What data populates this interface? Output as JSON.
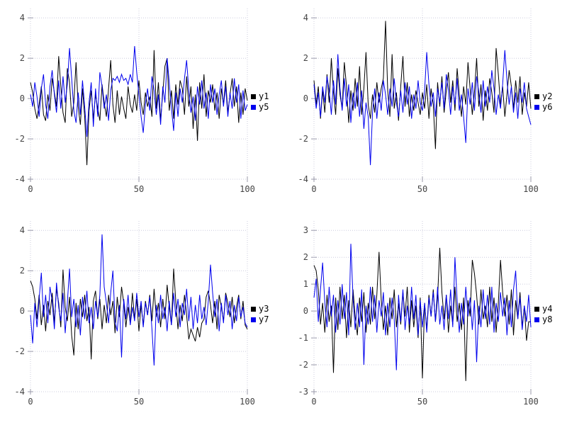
{
  "figure": {
    "background": "#ffffff"
  },
  "colors": {
    "grid": "#ccccdd",
    "tick": "#9999aa",
    "tick_label": "#444444",
    "legend_text": "#000000",
    "series_black": "#000000",
    "series_blue": "#0000ee"
  },
  "chart_data": [
    {
      "type": "line",
      "position": "top-left",
      "title": "",
      "xlabel": "",
      "ylabel": "",
      "xlim": [
        0,
        100
      ],
      "ylim": [
        -4,
        4
      ],
      "x_ticks": [
        0,
        50,
        100
      ],
      "y_ticks": [
        -4,
        -2,
        0,
        2,
        4
      ],
      "grid": true,
      "legend_position": "right",
      "series": [
        {
          "name": "y1",
          "color": "#000000",
          "values": [
            0.8,
            0.3,
            -0.5,
            -1.0,
            -0.3,
            0.6,
            -0.8,
            -1.1,
            0.2,
            -0.6,
            1.0,
            0.3,
            -0.4,
            2.1,
            0.6,
            -0.7,
            -1.2,
            1.5,
            0.8,
            -0.9,
            -0.2,
            1.8,
            -0.4,
            -1.3,
            0.5,
            -0.9,
            -3.3,
            -0.6,
            0.4,
            -1.0,
            0.2,
            -0.5,
            -1.1,
            0.7,
            -0.2,
            -0.9,
            0.5,
            1.9,
            -0.3,
            -1.2,
            0.4,
            -0.8,
            0.1,
            -0.5,
            -1.0,
            0.6,
            -0.3,
            -0.7,
            0.2,
            -0.6,
            0.9,
            -0.2,
            -0.8,
            0.3,
            -0.4,
            0.1,
            -0.9,
            2.4,
            -0.5,
            0.8,
            -1.1,
            0.3,
            1.6,
            2.0,
            -0.6,
            0.4,
            -1.0,
            0.7,
            -0.3,
            0.9,
            0.5,
            -0.8,
            1.1,
            -0.4,
            0.6,
            -1.5,
            0.2,
            -2.1,
            0.8,
            -0.5,
            1.2,
            -0.9,
            0.4,
            -0.2,
            0.7,
            -0.6,
            0.3,
            -1.0,
            0.5,
            -0.3,
            0.9,
            -0.7,
            0.2,
            1.0,
            -0.4,
            0.6,
            -1.2,
            0.3,
            -0.8,
            0.5,
            -0.1
          ]
        },
        {
          "name": "y5",
          "color": "#0000ee",
          "values": [
            0.2,
            -0.4,
            0.8,
            0.1,
            -0.9,
            0.5,
            1.2,
            -0.3,
            -1.0,
            0.6,
            1.4,
            0.2,
            -0.7,
            0.9,
            -0.5,
            1.1,
            -0.2,
            0.7,
            2.5,
            1.0,
            -0.6,
            -1.2,
            0.3,
            -0.8,
            0.9,
            -0.4,
            -1.9,
            -0.2,
            0.8,
            -1.4,
            0.5,
            -0.9,
            1.3,
            0.6,
            -0.5,
            0.2,
            -1.1,
            0.4,
            1.0,
            0.9,
            1.1,
            0.8,
            1.2,
            0.9,
            1.0,
            0.7,
            1.2,
            0.8,
            2.6,
            1.3,
            0.2,
            -0.9,
            -1.7,
            -0.3,
            0.5,
            -0.6,
            1.1,
            0.4,
            -0.8,
            0.2,
            -1.3,
            0.6,
            -0.2,
            2.0,
            0.8,
            -0.5,
            -1.6,
            0.3,
            -0.9,
            0.5,
            -0.2,
            1.0,
            1.9,
            0.4,
            -0.7,
            0.1,
            -1.1,
            0.6,
            -0.3,
            0.9,
            -0.5,
            0.3,
            -1.0,
            0.7,
            -0.2,
            0.5,
            -0.8,
            0.2,
            0.9,
            -0.4,
            0.6,
            -0.9,
            0.3,
            -0.5,
            1.0,
            -0.2,
            0.7,
            -1.0,
            0.4,
            -0.6,
            -0.3
          ]
        }
      ]
    },
    {
      "type": "line",
      "position": "top-right",
      "title": "",
      "xlabel": "",
      "ylabel": "",
      "xlim": [
        0,
        100
      ],
      "ylim": [
        -4,
        4
      ],
      "x_ticks": [
        0,
        50,
        100
      ],
      "y_ticks": [
        -4,
        -2,
        0,
        2,
        4
      ],
      "grid": true,
      "legend_position": "right",
      "series": [
        {
          "name": "y2",
          "color": "#000000",
          "values": [
            0.9,
            -0.3,
            0.6,
            -1.0,
            0.4,
            -0.7,
            1.2,
            -0.2,
            2.0,
            0.3,
            -0.8,
            1.5,
            0.2,
            -0.5,
            1.8,
            0.6,
            -1.2,
            0.4,
            -0.6,
            1.0,
            -0.4,
            1.6,
            -0.8,
            0.5,
            2.3,
            -0.3,
            -1.0,
            0.2,
            -0.7,
            0.8,
            -0.2,
            0.5,
            1.0,
            3.85,
            0.4,
            -0.9,
            2.2,
            -0.5,
            0.3,
            -1.1,
            0.6,
            2.1,
            -0.4,
            0.8,
            -0.9,
            0.2,
            -0.6,
            0.4,
            -0.2,
            -0.8,
            0.3,
            -0.5,
            0.7,
            -1.0,
            0.5,
            -0.3,
            -2.5,
            0.8,
            -0.4,
            1.1,
            -0.7,
            0.4,
            1.3,
            -0.2,
            0.9,
            -0.6,
            1.5,
            0.2,
            -0.9,
            0.6,
            -0.3,
            1.8,
            0.5,
            -0.8,
            0.3,
            2.0,
            -0.4,
            0.7,
            -1.1,
            0.4,
            -0.6,
            1.0,
            0.3,
            -0.7,
            2.5,
            1.2,
            -0.3,
            0.6,
            -0.9,
            0.2,
            1.4,
            0.6,
            -0.5,
            0.9,
            -0.2,
            1.1,
            -0.8,
            0.3,
            -0.4,
            0.8,
            -0.5
          ]
        },
        {
          "name": "y6",
          "color": "#0000ee",
          "values": [
            0.7,
            -0.5,
            0.3,
            -0.9,
            0.6,
            -0.2,
            1.1,
            0.4,
            -0.8,
            0.9,
            -0.3,
            2.2,
            0.5,
            -0.6,
            1.0,
            -0.4,
            0.7,
            -1.2,
            0.3,
            -0.5,
            0.8,
            -0.9,
            0.4,
            -1.5,
            -0.2,
            -0.9,
            -3.3,
            -0.7,
            0.5,
            -1.0,
            0.3,
            -0.6,
            0.9,
            0.2,
            -0.8,
            0.5,
            -0.4,
            1.0,
            -0.2,
            -0.9,
            0.4,
            -0.7,
            0.8,
            -0.3,
            0.6,
            -1.0,
            0.2,
            -0.5,
            0.9,
            -0.2,
            -0.6,
            0.4,
            2.3,
            0.7,
            -0.4,
            0.3,
            -0.9,
            0.5,
            -0.2,
            0.8,
            -0.5,
            1.2,
            0.4,
            -0.8,
            0.6,
            -0.3,
            1.0,
            -0.6,
            0.2,
            -0.9,
            -2.2,
            0.5,
            -0.3,
            0.8,
            -0.6,
            1.1,
            0.3,
            -0.7,
            0.9,
            -0.4,
            0.6,
            -0.2,
            1.4,
            0.5,
            -0.8,
            0.2,
            -0.5,
            0.7,
            2.4,
            0.9,
            -0.3,
            0.6,
            -0.7,
            0.3,
            -1.0,
            0.5,
            -0.2,
            0.8,
            -0.5,
            -0.9,
            -1.3
          ]
        }
      ]
    },
    {
      "type": "line",
      "position": "bottom-left",
      "title": "",
      "xlabel": "",
      "ylabel": "",
      "xlim": [
        0,
        100
      ],
      "ylim": [
        -4,
        4
      ],
      "x_ticks": [
        0,
        50,
        100
      ],
      "y_ticks": [
        -4,
        -2,
        0,
        2,
        4
      ],
      "grid": true,
      "legend_position": "right",
      "series": [
        {
          "name": "y3",
          "color": "#000000",
          "values": [
            1.5,
            1.2,
            0.6,
            -0.4,
            0.8,
            -0.7,
            0.3,
            -1.0,
            0.5,
            -0.2,
            0.9,
            -0.6,
            1.1,
            0.4,
            -0.8,
            2.05,
            0.2,
            -0.5,
            0.7,
            -1.2,
            -2.2,
            0.4,
            -0.9,
            0.6,
            -0.3,
            0.8,
            -0.5,
            0.2,
            -2.4,
            0.5,
            1.0,
            -0.4,
            0.6,
            -0.9,
            0.3,
            -0.6,
            0.8,
            -0.2,
            0.5,
            -1.1,
            0.7,
            -0.3,
            1.2,
            0.4,
            -0.8,
            0.2,
            -0.6,
            0.9,
            -0.4,
            0.6,
            -1.0,
            0.3,
            -0.7,
            0.5,
            -0.2,
            0.8,
            -0.5,
            1.1,
            -0.3,
            0.4,
            -0.8,
            0.6,
            -0.4,
            1.3,
            0.2,
            -0.7,
            2.1,
            0.5,
            -0.9,
            0.3,
            -0.5,
            0.8,
            -0.2,
            -1.4,
            -0.9,
            -1.2,
            -1.5,
            -0.8,
            -1.3,
            -0.6,
            -0.4,
            0.7,
            1.0,
            0.3,
            -0.6,
            0.5,
            -0.9,
            0.8,
            0.2,
            -0.5,
            0.9,
            0.4,
            -0.3,
            0.7,
            -0.6,
            0.2,
            0.8,
            -0.4,
            0.5,
            -0.7,
            -0.9
          ]
        },
        {
          "name": "y7",
          "color": "#0000ee",
          "values": [
            -0.2,
            -1.6,
            0.4,
            -0.8,
            0.6,
            1.9,
            -0.3,
            0.8,
            -0.6,
            1.2,
            0.5,
            -0.9,
            1.4,
            0.2,
            -0.5,
            0.9,
            -1.1,
            0.4,
            2.1,
            -0.3,
            0.6,
            -0.8,
            0.3,
            -1.2,
            0.7,
            -0.4,
            1.0,
            -0.6,
            0.2,
            -0.9,
            0.5,
            -0.3,
            0.8,
            3.8,
            1.2,
            0.4,
            -0.6,
            0.9,
            2.0,
            -0.5,
            -1.0,
            0.3,
            -2.3,
            0.6,
            -0.4,
            0.8,
            -0.7,
            0.2,
            -0.5,
            0.9,
            -0.3,
            0.5,
            -0.8,
            0.4,
            -0.2,
            0.7,
            -0.9,
            -2.7,
            0.3,
            -0.6,
            0.8,
            -0.4,
            0.2,
            -1.0,
            0.5,
            -0.7,
            0.9,
            -0.3,
            0.6,
            -0.8,
            0.4,
            -0.2,
            1.1,
            -0.5,
            0.7,
            -0.9,
            0.3,
            -0.6,
            0.8,
            -0.4,
            0.2,
            -0.7,
            0.5,
            2.3,
            0.9,
            -0.3,
            0.6,
            -1.0,
            0.4,
            -0.6,
            0.8,
            -0.2,
            0.5,
            -0.9,
            0.3,
            -0.5,
            0.7,
            -0.3,
            0.2,
            -0.6,
            -0.8
          ]
        }
      ]
    },
    {
      "type": "line",
      "position": "bottom-right",
      "title": "",
      "xlabel": "",
      "ylabel": "",
      "xlim": [
        0,
        100
      ],
      "ylim": [
        -3,
        3
      ],
      "x_ticks": [
        0,
        50,
        100
      ],
      "y_ticks": [
        -3,
        -2,
        -1,
        0,
        1,
        2,
        3
      ],
      "grid": true,
      "legend_position": "right",
      "series": [
        {
          "name": "y4",
          "color": "#000000",
          "values": [
            1.7,
            1.5,
            0.8,
            -0.5,
            0.3,
            -0.8,
            0.6,
            -0.4,
            0.2,
            -2.3,
            0.5,
            -0.7,
            0.9,
            -0.3,
            0.6,
            -1.0,
            0.4,
            -0.6,
            0.8,
            -0.2,
            -0.9,
            0.5,
            -0.4,
            0.7,
            -0.8,
            0.3,
            -0.5,
            0.9,
            -0.3,
            0.6,
            2.2,
            0.4,
            -0.7,
            0.2,
            -0.9,
            0.5,
            -0.3,
            0.8,
            -0.6,
            0.3,
            -0.5,
            0.7,
            -0.2,
            0.9,
            -0.8,
            0.4,
            -0.6,
            0.2,
            -1.0,
            0.5,
            -2.5,
            0.3,
            -0.7,
            0.6,
            -0.2,
            0.8,
            -0.4,
            0.5,
            2.35,
            0.7,
            -0.3,
            0.6,
            -0.8,
            0.2,
            -0.5,
            0.9,
            -0.4,
            0.3,
            -0.7,
            0.5,
            -2.6,
            0.4,
            -0.2,
            1.9,
            1.4,
            0.6,
            -0.5,
            0.8,
            -0.3,
            0.2,
            -0.6,
            0.9,
            -0.4,
            0.5,
            -0.8,
            0.3,
            1.9,
            0.7,
            -0.2,
            0.6,
            -0.5,
            0.8,
            -0.9,
            0.4,
            -0.3,
            0.7,
            -0.6,
            0.2,
            -1.1,
            -0.4,
            -0.4
          ]
        },
        {
          "name": "y8",
          "color": "#0000ee",
          "values": [
            0.5,
            1.2,
            -0.4,
            0.8,
            1.8,
            0.3,
            -0.6,
            0.9,
            -0.2,
            0.6,
            -0.8,
            0.4,
            -0.5,
            1.0,
            -0.3,
            0.7,
            -0.9,
            2.5,
            0.5,
            -0.7,
            0.3,
            -0.6,
            0.8,
            -2.0,
            0.2,
            -0.5,
            0.9,
            -0.4,
            0.6,
            -0.8,
            0.4,
            -0.2,
            0.7,
            -0.9,
            0.3,
            -0.6,
            0.5,
            -0.3,
            -2.2,
            0.6,
            -0.4,
            0.8,
            -0.7,
            0.2,
            -0.5,
            0.9,
            -0.3,
            0.6,
            -0.9,
            0.4,
            -0.6,
            0.3,
            -0.8,
            0.5,
            -0.2,
            0.7,
            -0.4,
            0.9,
            -0.5,
            0.2,
            -0.7,
            0.6,
            -0.3,
            0.8,
            -0.6,
            2.0,
            0.4,
            -0.8,
            0.3,
            -0.5,
            0.9,
            -0.2,
            0.5,
            -0.7,
            0.4,
            -1.9,
            0.2,
            -0.6,
            0.8,
            -0.3,
            0.6,
            -0.5,
            0.9,
            -0.8,
            0.3,
            -0.4,
            0.7,
            -0.2,
            0.5,
            -0.9,
            0.4,
            -0.6,
            0.8,
            1.5,
            -0.3,
            0.5,
            -0.7,
            0.2,
            -0.4,
            0.6,
            -0.6
          ]
        }
      ]
    }
  ]
}
